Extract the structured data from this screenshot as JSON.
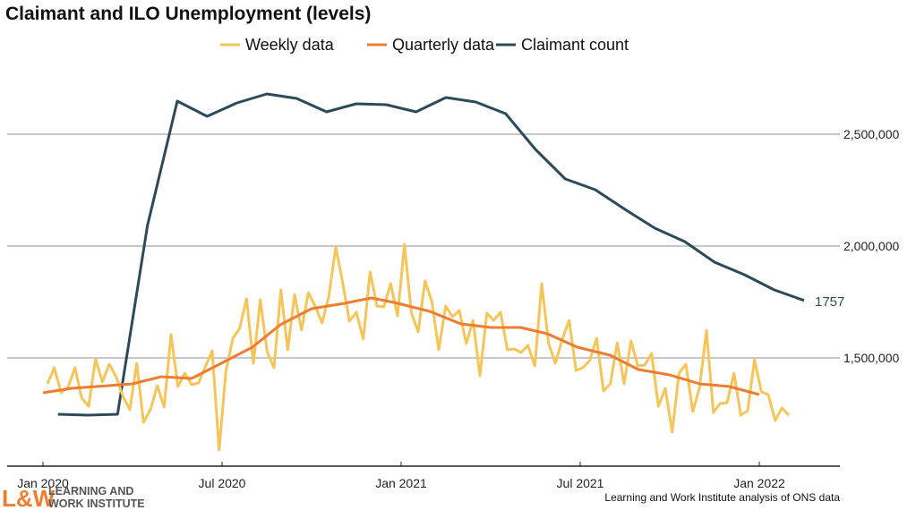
{
  "chart_data": {
    "type": "line",
    "title": "Claimant and ILO Unemployment (levels)",
    "xlabel": "",
    "ylabel": "",
    "x_units": "months since Jan 2020",
    "xlim": [
      0,
      26.7
    ],
    "ylim": [
      1050000,
      2750000
    ],
    "x_ticks": [
      {
        "m": 0,
        "label": "Jan 2020"
      },
      {
        "m": 6,
        "label": "Jul 2020"
      },
      {
        "m": 12,
        "label": "Jan 2021"
      },
      {
        "m": 18,
        "label": "Jul 2021"
      },
      {
        "m": 24,
        "label": "Jan 2022"
      }
    ],
    "y_ticks": [
      {
        "v": 1500000,
        "label": "1,500,000"
      },
      {
        "v": 2000000,
        "label": "2,000,000"
      },
      {
        "v": 2500000,
        "label": "2,500,000"
      }
    ],
    "grid": "horizontal",
    "legend": {
      "position": "top-center",
      "entries": [
        "Weekly data",
        "Quarterly data",
        "Claimant count"
      ]
    },
    "series": [
      {
        "name": "Weekly data",
        "color": "#f6c55a",
        "x_start": 0.15,
        "x_step": 0.23,
        "values": [
          1384,
          1456,
          1344,
          1368,
          1456,
          1320,
          1284,
          1496,
          1392,
          1472,
          1416,
          1328,
          1268,
          1476,
          1212,
          1268,
          1376,
          1280,
          1604,
          1372,
          1432,
          1380,
          1388,
          1460,
          1532,
          1088,
          1440,
          1588,
          1632,
          1764,
          1476,
          1760,
          1528,
          1456,
          1804,
          1536,
          1784,
          1624,
          1792,
          1732,
          1656,
          1776,
          1996,
          1836,
          1664,
          1704,
          1584,
          1884,
          1732,
          1728,
          1832,
          1688,
          2008,
          1704,
          1616,
          1844,
          1752,
          1536,
          1732,
          1684,
          1712,
          1564,
          1668,
          1420,
          1700,
          1668,
          1704,
          1536,
          1540,
          1524,
          1556,
          1464,
          1832,
          1564,
          1476,
          1584,
          1668,
          1444,
          1456,
          1488,
          1588,
          1352,
          1384,
          1568,
          1384,
          1576,
          1464,
          1468,
          1520,
          1284,
          1364,
          1168,
          1432,
          1472,
          1260,
          1368,
          1624,
          1256,
          1296,
          1300,
          1432,
          1244,
          1264,
          1492,
          1348,
          1336,
          1220,
          1276,
          1244
        ]
      },
      {
        "name": "Quarterly data",
        "color": "#ee7d31",
        "points": [
          [
            0,
            1344
          ],
          [
            0.96,
            1364
          ],
          [
            3,
            1384
          ],
          [
            3.96,
            1416
          ],
          [
            4.98,
            1408
          ],
          [
            6.15,
            1488
          ],
          [
            7.02,
            1548
          ],
          [
            7.95,
            1648
          ],
          [
            9,
            1720
          ],
          [
            10.1,
            1744
          ],
          [
            11,
            1768
          ],
          [
            11.76,
            1748
          ],
          [
            12.36,
            1728
          ],
          [
            12.96,
            1708
          ],
          [
            14,
            1652
          ],
          [
            15,
            1636
          ],
          [
            16,
            1636
          ],
          [
            16.9,
            1608
          ],
          [
            17.9,
            1548
          ],
          [
            19,
            1512
          ],
          [
            19.95,
            1448
          ],
          [
            21,
            1424
          ],
          [
            22,
            1384
          ],
          [
            23,
            1372
          ],
          [
            24,
            1336
          ]
        ]
      },
      {
        "name": "Claimant count",
        "color": "#2c4a5a",
        "x_start": 0.5,
        "x_step": 1,
        "values": [
          1248,
          1244,
          1248,
          2092,
          2648,
          2580,
          2640,
          2680,
          2660,
          2600,
          2636,
          2632,
          2600,
          2664,
          2644,
          2592,
          2432,
          2300,
          2252,
          2164,
          2080,
          2020,
          1928,
          1872,
          1804,
          1757
        ],
        "end_label": "1757"
      }
    ],
    "value_scale": "thousands",
    "source": "Learning and Work Institute analysis of ONS data"
  },
  "logo": {
    "mark": "L&W",
    "line1": "LEARNING AND",
    "line2": "WORK INSTITUTE"
  }
}
